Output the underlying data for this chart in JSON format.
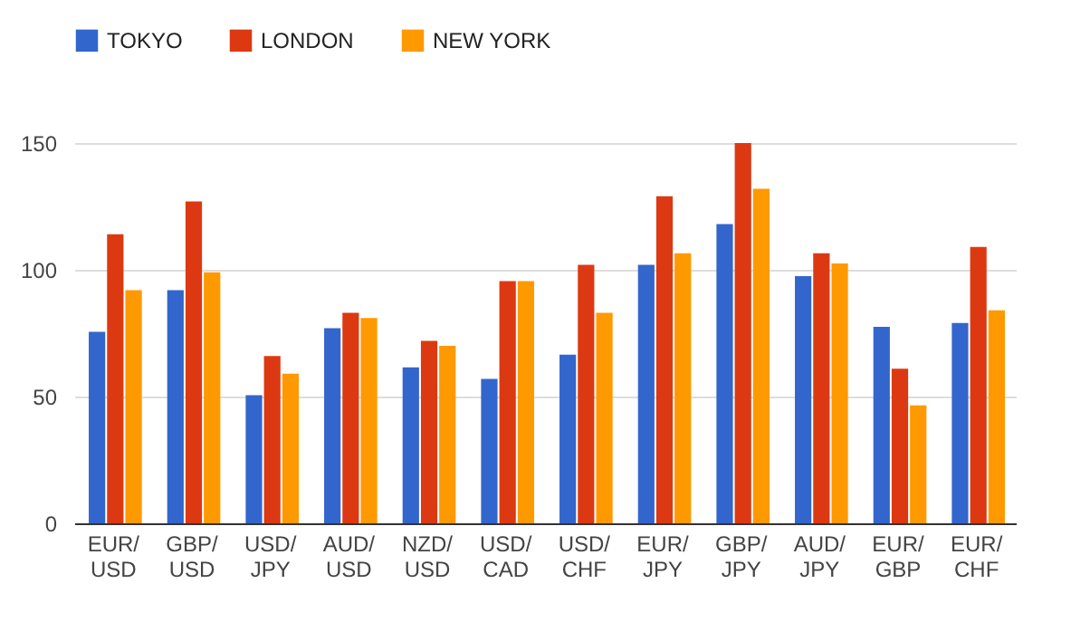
{
  "chart_data": {
    "type": "bar",
    "categories": [
      "EUR/USD",
      "GBP/USD",
      "USD/JPY",
      "AUD/USD",
      "NZD/USD",
      "USD/CAD",
      "USD/CHF",
      "EUR/JPY",
      "GBP/JPY",
      "AUD/JPY",
      "EUR/GBP",
      "EUR/CHF"
    ],
    "series": [
      {
        "name": "TOKYO",
        "color": "#3366cc",
        "values": [
          75.5,
          92,
          50.5,
          77,
          61.5,
          57,
          66.5,
          102,
          118,
          97.5,
          77.5,
          79
        ]
      },
      {
        "name": "LONDON",
        "color": "#dc3912",
        "values": [
          114,
          127,
          66,
          83,
          72,
          95.5,
          102,
          129,
          150,
          106.5,
          61,
          109
        ]
      },
      {
        "name": "NEW YORK",
        "color": "#ff9900",
        "values": [
          92,
          99,
          59,
          81,
          70,
          95.5,
          83,
          106.5,
          132,
          102.5,
          46.5,
          84
        ]
      }
    ],
    "ylim": [
      0,
      150
    ],
    "yticks": [
      0,
      50,
      100,
      150
    ],
    "grid": "y",
    "legend": "top left"
  }
}
